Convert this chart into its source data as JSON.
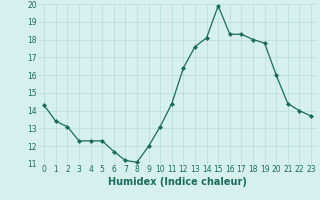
{
  "x": [
    0,
    1,
    2,
    3,
    4,
    5,
    6,
    7,
    8,
    9,
    10,
    11,
    12,
    13,
    14,
    15,
    16,
    17,
    18,
    19,
    20,
    21,
    22,
    23
  ],
  "y": [
    14.3,
    13.4,
    13.1,
    12.3,
    12.3,
    12.3,
    11.7,
    11.2,
    11.1,
    12.0,
    13.1,
    14.4,
    16.4,
    17.6,
    18.1,
    19.9,
    18.3,
    18.3,
    18.0,
    17.8,
    16.0,
    14.4,
    14.0,
    13.7
  ],
  "xlim": [
    -0.5,
    23.5
  ],
  "ylim": [
    11,
    20
  ],
  "yticks": [
    11,
    12,
    13,
    14,
    15,
    16,
    17,
    18,
    19,
    20
  ],
  "xticks": [
    0,
    1,
    2,
    3,
    4,
    5,
    6,
    7,
    8,
    9,
    10,
    11,
    12,
    13,
    14,
    15,
    16,
    17,
    18,
    19,
    20,
    21,
    22,
    23
  ],
  "xlabel": "Humidex (Indice chaleur)",
  "line_color": "#1a6b5a",
  "marker": "D",
  "marker_size": 2,
  "bg_color": "#d6f0ee",
  "grid_color": "#b8dbd8",
  "tick_color": "#1a6b5a",
  "xlabel_fontsize": 7,
  "tick_fontsize": 5.5
}
